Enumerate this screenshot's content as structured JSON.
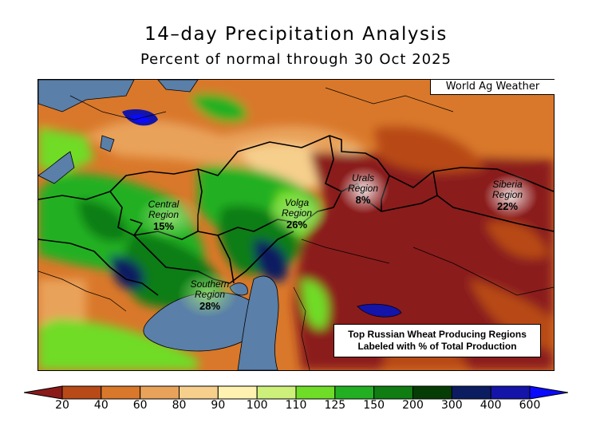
{
  "title": "14–day Precipitation Analysis",
  "subtitle": "Percent of normal through 30 Oct 2025",
  "credit": "World Ag Weather",
  "note": {
    "line1": "Top Russian Wheat Producing Regions",
    "line2": "Labeled with % of Total Production"
  },
  "regions": [
    {
      "name": "Central Region",
      "name_l1": "Central",
      "name_l2": "Region",
      "share": "15%"
    },
    {
      "name": "Volga Region",
      "name_l1": "Volga",
      "name_l2": "Region",
      "share": "26%"
    },
    {
      "name": "Urals Region",
      "name_l1": "Urals",
      "name_l2": "Region",
      "share": "8%"
    },
    {
      "name": "Siberia Region",
      "name_l1": "Siberia",
      "name_l2": "Region",
      "share": "22%"
    },
    {
      "name": "Southern Region",
      "name_l1": "Southern",
      "name_l2": "Region",
      "share": "28%"
    }
  ],
  "legend": {
    "ticks": [
      "20",
      "40",
      "60",
      "80",
      "90",
      "100",
      "110",
      "125",
      "150",
      "200",
      "300",
      "400",
      "600"
    ],
    "colors": [
      "#8b1a1a",
      "#b84a18",
      "#d9782a",
      "#e9a25a",
      "#f6cf8c",
      "#fff2b0",
      "#ccf07a",
      "#6fdc28",
      "#22b022",
      "#0f7d12",
      "#063d06",
      "#0b1d60",
      "#1414a8",
      "#0a0aff"
    ]
  }
}
